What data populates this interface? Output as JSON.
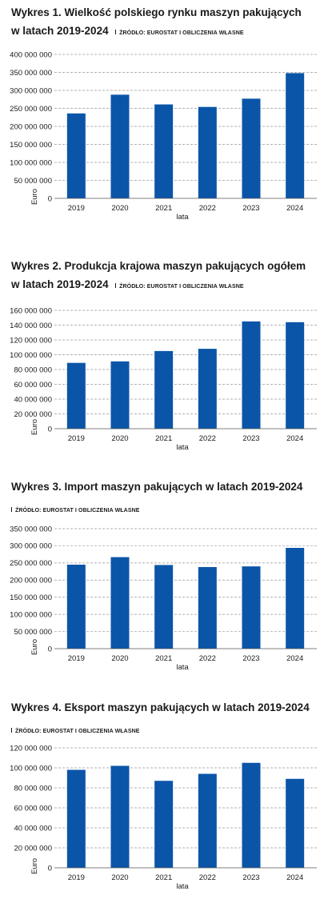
{
  "colors": {
    "bar": "#0b55a8"
  },
  "charts": [
    {
      "title_line1": "Wykres 1. Wielkość polskiego rynku maszyn pakujących",
      "title_line2": "w latach 2019-2024",
      "source": "ŹRÓDŁO: EUROSTAT I OBLICZENIA WŁASNE",
      "ylabel": "Euro",
      "xlabel": "lata",
      "yticks": [
        "0",
        "50 000 000",
        "100 000 000",
        "150 000 000",
        "200 000 000",
        "250 000 000",
        "300 000 000",
        "350 000 000",
        "400 000 000"
      ]
    },
    {
      "title_line1": "Wykres 2. Produkcja krajowa maszyn pakujących ogółem",
      "title_line2": "w latach 2019-2024",
      "source": "ŹRÓDŁO: EUROSTAT I OBLICZENIA WŁASNE",
      "ylabel": "Euro",
      "xlabel": "lata",
      "yticks": [
        "0",
        "20 000 000",
        "40 000 000",
        "60 000 000",
        "80 000 000",
        "100 000 000",
        "120 000 000",
        "140 000 000",
        "160 000 000"
      ]
    },
    {
      "title_line1": "Wykres 3. Import maszyn pakujących w latach 2019-2024",
      "source": "ŹRÓDŁO: EUROSTAT I OBLICZENIA WŁASNE",
      "ylabel": "Euro",
      "xlabel": "lata",
      "yticks": [
        "0",
        "50 000 000",
        "100 000 000",
        "150 000 000",
        "200 000 000",
        "250 000 000",
        "300 000 000",
        "350 000 000"
      ]
    },
    {
      "title_line1": "Wykres 4. Eksport maszyn pakujących w latach 2019-2024",
      "source": "ŹRÓDŁO: EUROSTAT I OBLICZENIA WŁASNE",
      "ylabel": "Euro",
      "xlabel": "lata",
      "yticks": [
        "0",
        "20 000 000",
        "40 000 000",
        "60 000 000",
        "80 000 000",
        "100 000 000",
        "120 000 000"
      ]
    }
  ],
  "chart_data": [
    {
      "type": "bar",
      "title": "Wykres 1. Wielkość polskiego rynku maszyn pakujących w latach 2019-2024",
      "categories": [
        "2019",
        "2020",
        "2021",
        "2022",
        "2023",
        "2024"
      ],
      "values": [
        236000000,
        288000000,
        261000000,
        254000000,
        277000000,
        348000000
      ],
      "xlabel": "lata",
      "ylabel": "Euro",
      "ylim": [
        0,
        400000000
      ],
      "grid": true
    },
    {
      "type": "bar",
      "title": "Wykres 2. Produkcja krajowa maszyn pakujących ogółem w latach 2019-2024",
      "categories": [
        "2019",
        "2020",
        "2021",
        "2022",
        "2023",
        "2024"
      ],
      "values": [
        89000000,
        91000000,
        105000000,
        108000000,
        145000000,
        144000000
      ],
      "xlabel": "lata",
      "ylabel": "Euro",
      "ylim": [
        0,
        160000000
      ],
      "grid": true
    },
    {
      "type": "bar",
      "title": "Wykres 3. Import maszyn pakujących w latach 2019-2024",
      "categories": [
        "2019",
        "2020",
        "2021",
        "2022",
        "2023",
        "2024"
      ],
      "values": [
        245000000,
        267000000,
        244000000,
        238000000,
        240000000,
        294000000
      ],
      "xlabel": "lata",
      "ylabel": "Euro",
      "ylim": [
        0,
        350000000
      ],
      "grid": true
    },
    {
      "type": "bar",
      "title": "Wykres 4. Eksport maszyn pakujących w latach 2019-2024",
      "categories": [
        "2019",
        "2020",
        "2021",
        "2022",
        "2023",
        "2024"
      ],
      "values": [
        98000000,
        102000000,
        87000000,
        94000000,
        105000000,
        89000000
      ],
      "xlabel": "lata",
      "ylabel": "Euro",
      "ylim": [
        0,
        120000000
      ],
      "grid": true
    }
  ]
}
